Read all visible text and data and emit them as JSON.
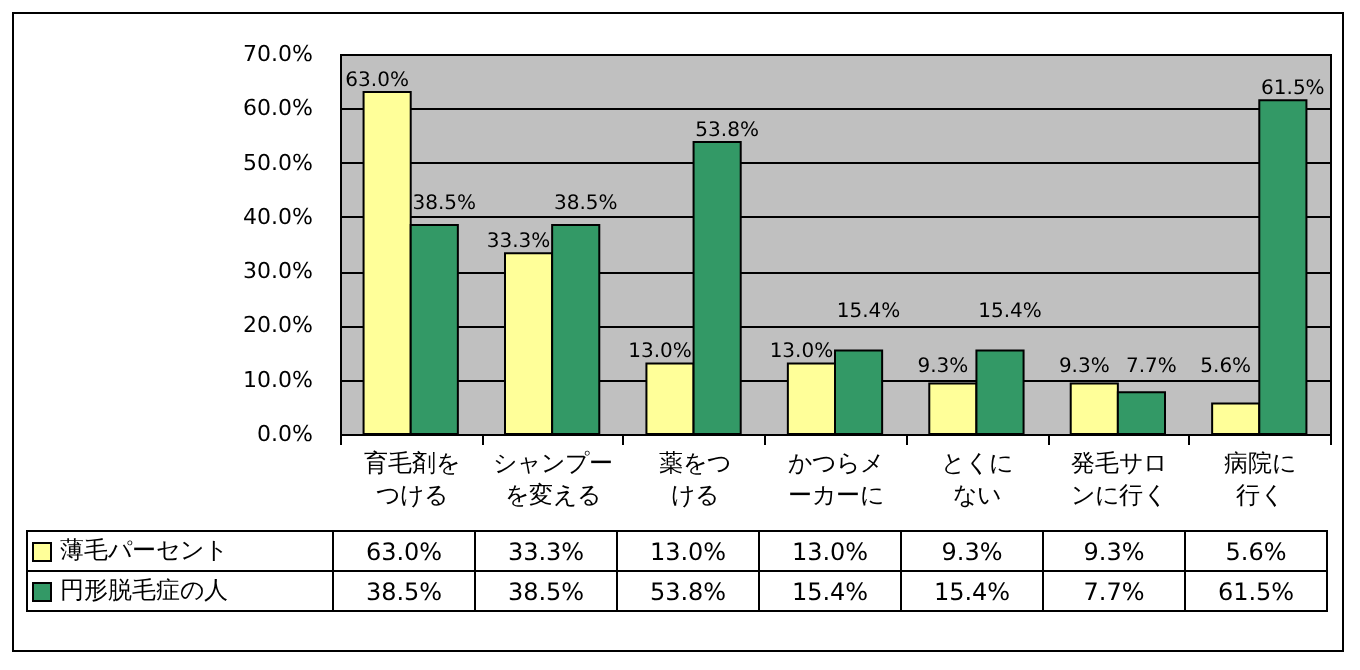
{
  "chart_data": {
    "type": "bar",
    "categories": [
      "育毛剤をつける",
      "シャンプーを変える",
      "薬をつける",
      "かつらメーカーに",
      "とくにない",
      "発毛サロンに行く",
      "病院に行く"
    ],
    "series": [
      {
        "name": "薄毛パーセント",
        "color": "#ffff99",
        "values": [
          63.0,
          33.3,
          13.0,
          13.0,
          9.3,
          9.3,
          5.6
        ],
        "value_labels": [
          "63.0%",
          "33.3%",
          "13.0%",
          "13.0%",
          "9.3%",
          "9.3%",
          "5.6%"
        ]
      },
      {
        "name": "円形脱毛症の人",
        "color": "#339966",
        "values": [
          38.5,
          38.5,
          53.8,
          15.4,
          15.4,
          7.7,
          61.5
        ],
        "value_labels": [
          "38.5%",
          "38.5%",
          "53.8%",
          "15.4%",
          "15.4%",
          "7.7%",
          "61.5%"
        ]
      }
    ],
    "ylim": [
      0,
      70
    ],
    "yticks": [
      {
        "value": 0,
        "label": "0.0%"
      },
      {
        "value": 10,
        "label": "10.0%"
      },
      {
        "value": 20,
        "label": "20.0%"
      },
      {
        "value": 30,
        "label": "30.0%"
      },
      {
        "value": 40,
        "label": "40.0%"
      },
      {
        "value": 50,
        "label": "50.0%"
      },
      {
        "value": 60,
        "label": "60.0%"
      },
      {
        "value": 70,
        "label": "70.0%"
      }
    ],
    "grid": "y",
    "legend": "bottom"
  }
}
